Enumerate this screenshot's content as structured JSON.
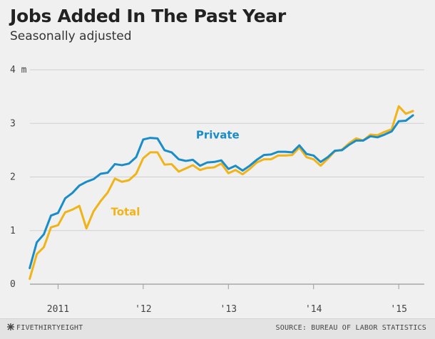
{
  "chart_data": {
    "type": "line",
    "title": "Jobs Added In The Past Year",
    "subtitle": "Seasonally adjusted",
    "xlabel": "",
    "ylabel": "",
    "y_unit_suffix": "m",
    "ylim": [
      0,
      4
    ],
    "yticks": [
      0,
      1,
      2,
      3,
      4
    ],
    "ytick_labels": [
      "0",
      "1",
      "2",
      "3",
      "4 m"
    ],
    "xlim": [
      2010.67,
      2015.3
    ],
    "xticks": [
      2011,
      2012,
      2013,
      2014,
      2015
    ],
    "xtick_labels": [
      "2011",
      "'12",
      "'13",
      "'14",
      "'15"
    ],
    "grid": "horizontal",
    "legend": "inline labels",
    "series": [
      {
        "name": "Private",
        "color": "#1a8cc8",
        "label_at": [
          2012.62,
          2.72
        ],
        "points": [
          [
            2010.667,
            0.3
          ],
          [
            2010.75,
            0.78
          ],
          [
            2010.833,
            0.93
          ],
          [
            2010.917,
            1.28
          ],
          [
            2011.0,
            1.33
          ],
          [
            2011.083,
            1.6
          ],
          [
            2011.167,
            1.7
          ],
          [
            2011.25,
            1.84
          ],
          [
            2011.333,
            1.91
          ],
          [
            2011.417,
            1.96
          ],
          [
            2011.5,
            2.06
          ],
          [
            2011.583,
            2.08
          ],
          [
            2011.667,
            2.24
          ],
          [
            2011.75,
            2.22
          ],
          [
            2011.833,
            2.25
          ],
          [
            2011.917,
            2.37
          ],
          [
            2012.0,
            2.7
          ],
          [
            2012.083,
            2.73
          ],
          [
            2012.167,
            2.72
          ],
          [
            2012.25,
            2.5
          ],
          [
            2012.333,
            2.46
          ],
          [
            2012.417,
            2.33
          ],
          [
            2012.5,
            2.3
          ],
          [
            2012.583,
            2.32
          ],
          [
            2012.667,
            2.21
          ],
          [
            2012.75,
            2.27
          ],
          [
            2012.833,
            2.28
          ],
          [
            2012.917,
            2.31
          ],
          [
            2013.0,
            2.15
          ],
          [
            2013.083,
            2.21
          ],
          [
            2013.167,
            2.12
          ],
          [
            2013.25,
            2.21
          ],
          [
            2013.333,
            2.32
          ],
          [
            2013.417,
            2.41
          ],
          [
            2013.5,
            2.42
          ],
          [
            2013.583,
            2.47
          ],
          [
            2013.667,
            2.47
          ],
          [
            2013.75,
            2.46
          ],
          [
            2013.833,
            2.59
          ],
          [
            2013.917,
            2.43
          ],
          [
            2014.0,
            2.4
          ],
          [
            2014.083,
            2.28
          ],
          [
            2014.167,
            2.37
          ],
          [
            2014.25,
            2.49
          ],
          [
            2014.333,
            2.5
          ],
          [
            2014.417,
            2.6
          ],
          [
            2014.5,
            2.68
          ],
          [
            2014.583,
            2.68
          ],
          [
            2014.667,
            2.76
          ],
          [
            2014.75,
            2.74
          ],
          [
            2014.833,
            2.79
          ],
          [
            2014.917,
            2.85
          ],
          [
            2015.0,
            3.04
          ],
          [
            2015.083,
            3.05
          ],
          [
            2015.167,
            3.15
          ]
        ]
      },
      {
        "name": "Total",
        "color": "#f0b419",
        "label_at": [
          2011.62,
          1.28
        ],
        "points": [
          [
            2010.667,
            0.1
          ],
          [
            2010.75,
            0.56
          ],
          [
            2010.833,
            0.69
          ],
          [
            2010.917,
            1.06
          ],
          [
            2011.0,
            1.1
          ],
          [
            2011.083,
            1.34
          ],
          [
            2011.167,
            1.39
          ],
          [
            2011.25,
            1.46
          ],
          [
            2011.333,
            1.04
          ],
          [
            2011.417,
            1.36
          ],
          [
            2011.5,
            1.55
          ],
          [
            2011.583,
            1.71
          ],
          [
            2011.667,
            1.97
          ],
          [
            2011.75,
            1.91
          ],
          [
            2011.833,
            1.94
          ],
          [
            2011.917,
            2.06
          ],
          [
            2012.0,
            2.35
          ],
          [
            2012.083,
            2.46
          ],
          [
            2012.167,
            2.46
          ],
          [
            2012.25,
            2.23
          ],
          [
            2012.333,
            2.24
          ],
          [
            2012.417,
            2.1
          ],
          [
            2012.5,
            2.16
          ],
          [
            2012.583,
            2.22
          ],
          [
            2012.667,
            2.13
          ],
          [
            2012.75,
            2.17
          ],
          [
            2012.833,
            2.18
          ],
          [
            2012.917,
            2.25
          ],
          [
            2013.0,
            2.07
          ],
          [
            2013.083,
            2.13
          ],
          [
            2013.167,
            2.05
          ],
          [
            2013.25,
            2.15
          ],
          [
            2013.333,
            2.27
          ],
          [
            2013.417,
            2.33
          ],
          [
            2013.5,
            2.33
          ],
          [
            2013.583,
            2.4
          ],
          [
            2013.667,
            2.4
          ],
          [
            2013.75,
            2.41
          ],
          [
            2013.833,
            2.55
          ],
          [
            2013.917,
            2.37
          ],
          [
            2014.0,
            2.33
          ],
          [
            2014.083,
            2.21
          ],
          [
            2014.167,
            2.34
          ],
          [
            2014.25,
            2.48
          ],
          [
            2014.333,
            2.51
          ],
          [
            2014.417,
            2.63
          ],
          [
            2014.5,
            2.72
          ],
          [
            2014.583,
            2.68
          ],
          [
            2014.667,
            2.79
          ],
          [
            2014.75,
            2.78
          ],
          [
            2014.833,
            2.84
          ],
          [
            2014.917,
            2.89
          ],
          [
            2015.0,
            3.32
          ],
          [
            2015.083,
            3.18
          ],
          [
            2015.167,
            3.23
          ]
        ]
      }
    ]
  },
  "footer": {
    "brand": "FIVETHIRTYEIGHT",
    "brand_icon": "fivethirtyeight-logo-icon",
    "source": "SOURCE: BUREAU OF LABOR STATISTICS"
  }
}
